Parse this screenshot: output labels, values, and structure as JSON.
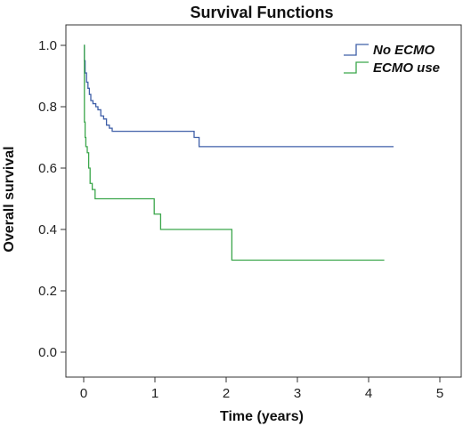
{
  "chart_data": {
    "type": "line",
    "title": "Survival Functions",
    "xlabel": "Time (years)",
    "ylabel": "Overall survival",
    "xlim": [
      0,
      5
    ],
    "ylim": [
      0,
      1.0
    ],
    "x_ticks": [
      "0",
      "1",
      "2",
      "3",
      "4",
      "5"
    ],
    "y_ticks": [
      "0.0",
      "0.2",
      "0.4",
      "0.6",
      "0.8",
      "1.0"
    ],
    "grid": false,
    "legend_position": "top-right",
    "step": true,
    "series": [
      {
        "name": "No ECMO",
        "color": "#3f5fa8",
        "points": [
          [
            0,
            1.0
          ],
          [
            0.01,
            0.95
          ],
          [
            0.02,
            0.91
          ],
          [
            0.04,
            0.88
          ],
          [
            0.06,
            0.86
          ],
          [
            0.08,
            0.84
          ],
          [
            0.1,
            0.82
          ],
          [
            0.13,
            0.81
          ],
          [
            0.17,
            0.8
          ],
          [
            0.2,
            0.79
          ],
          [
            0.24,
            0.77
          ],
          [
            0.28,
            0.76
          ],
          [
            0.32,
            0.74
          ],
          [
            0.36,
            0.73
          ],
          [
            0.4,
            0.72
          ],
          [
            1.55,
            0.7
          ],
          [
            1.62,
            0.67
          ],
          [
            4.35,
            0.67
          ]
        ]
      },
      {
        "name": "ECMO use",
        "color": "#3aa64a",
        "points": [
          [
            0,
            1.0
          ],
          [
            0.01,
            0.75
          ],
          [
            0.02,
            0.7
          ],
          [
            0.03,
            0.67
          ],
          [
            0.05,
            0.65
          ],
          [
            0.07,
            0.6
          ],
          [
            0.09,
            0.55
          ],
          [
            0.12,
            0.53
          ],
          [
            0.16,
            0.5
          ],
          [
            0.99,
            0.45
          ],
          [
            1.08,
            0.4
          ],
          [
            2.08,
            0.3
          ],
          [
            4.22,
            0.3
          ]
        ]
      }
    ]
  }
}
